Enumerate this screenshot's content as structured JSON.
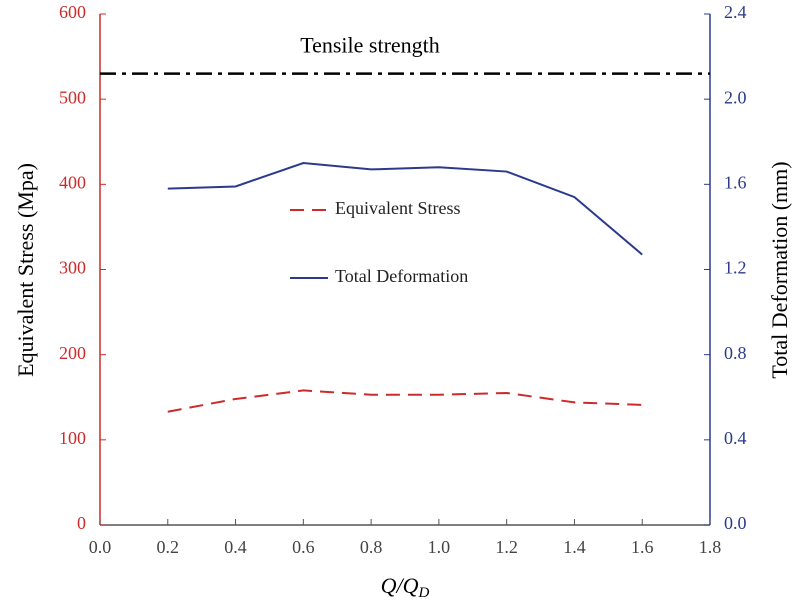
{
  "chart_data": {
    "type": "line",
    "x_label": {
      "main": "Q/Q",
      "sub": "D"
    },
    "y_label": "Equivalent Stress (Mpa)",
    "y2_label": "Total Deformation (mm)",
    "x": [
      0.2,
      0.4,
      0.6,
      0.8,
      1.0,
      1.2,
      1.4,
      1.6
    ],
    "xlim": [
      0,
      1.8
    ],
    "xticks": [
      {
        "value": 0,
        "label": "0.0"
      },
      0.2,
      0.4,
      0.6,
      0.8,
      {
        "value": 1,
        "label": "1.0"
      },
      1.2,
      1.4,
      1.6,
      1.8
    ],
    "ylim": [
      0,
      600
    ],
    "yticks": [
      0,
      100,
      200,
      300,
      400,
      500,
      600
    ],
    "y2lim": [
      0,
      2.4
    ],
    "y2ticks": [
      {
        "value": 0,
        "label": "0.0"
      },
      0.4,
      0.8,
      1.2,
      1.6,
      {
        "value": 2,
        "label": "2.0"
      },
      2.4
    ],
    "y_color": "#cc2b2b",
    "y2_color": "#2b3a8c",
    "series": [
      {
        "name": "Equivalent Stress",
        "color": "#cc2b2b",
        "style": "dashed",
        "axis": "y",
        "values": [
          133,
          148,
          158,
          153,
          153,
          155,
          144,
          141
        ]
      },
      {
        "name": "Total Deformation",
        "color": "#2b3a8c",
        "style": "solid",
        "axis": "y2",
        "values": [
          1.58,
          1.59,
          1.7,
          1.67,
          1.68,
          1.66,
          1.54,
          1.27
        ]
      }
    ],
    "reference_line": {
      "label": "Tensile strength",
      "value": 530,
      "color": "#000000",
      "style": "dashdot"
    }
  }
}
